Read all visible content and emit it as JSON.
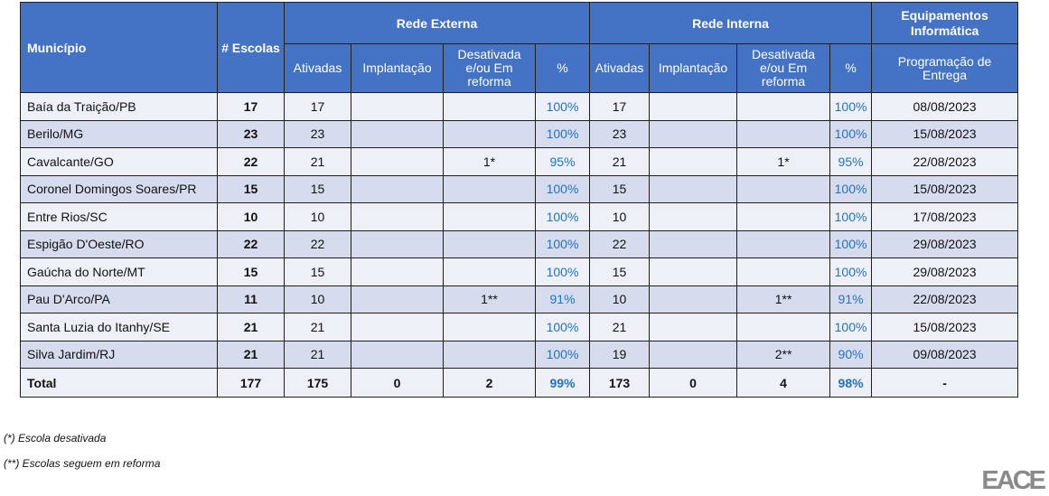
{
  "header": {
    "municipio": "Município",
    "escolas": "# Escolas",
    "rede_externa": "Rede Externa",
    "rede_interna": "Rede Interna",
    "equipamentos": "Equipamentos Informática",
    "ativadas": "Ativadas",
    "implantacao": "Implantação",
    "desativada": "Desativada e/ou Em reforma",
    "pct": "%",
    "programacao": "Programação de Entrega"
  },
  "rows": [
    {
      "mun": "Baía da Traição/PB",
      "esc": "17",
      "ea": "17",
      "ei": "",
      "ed": "",
      "ep": "100%",
      "ia": "17",
      "ii": "",
      "id": "",
      "ip": "100%",
      "prog": "08/08/2023"
    },
    {
      "mun": "Berilo/MG",
      "esc": "23",
      "ea": "23",
      "ei": "",
      "ed": "",
      "ep": "100%",
      "ia": "23",
      "ii": "",
      "id": "",
      "ip": "100%",
      "prog": "15/08/2023"
    },
    {
      "mun": "Cavalcante/GO",
      "esc": "22",
      "ea": "21",
      "ei": "",
      "ed": "1*",
      "ep": "95%",
      "ia": "21",
      "ii": "",
      "id": "1*",
      "ip": "95%",
      "prog": "22/08/2023"
    },
    {
      "mun": "Coronel Domingos Soares/PR",
      "esc": "15",
      "ea": "15",
      "ei": "",
      "ed": "",
      "ep": "100%",
      "ia": "15",
      "ii": "",
      "id": "",
      "ip": "100%",
      "prog": "15/08/2023"
    },
    {
      "mun": "Entre Rios/SC",
      "esc": "10",
      "ea": "10",
      "ei": "",
      "ed": "",
      "ep": "100%",
      "ia": "10",
      "ii": "",
      "id": "",
      "ip": "100%",
      "prog": "17/08/2023"
    },
    {
      "mun": "Espigão D'Oeste/RO",
      "esc": "22",
      "ea": "22",
      "ei": "",
      "ed": "",
      "ep": "100%",
      "ia": "22",
      "ii": "",
      "id": "",
      "ip": "100%",
      "prog": "29/08/2023"
    },
    {
      "mun": "Gaúcha do Norte/MT",
      "esc": "15",
      "ea": "15",
      "ei": "",
      "ed": "",
      "ep": "100%",
      "ia": "15",
      "ii": "",
      "id": "",
      "ip": "100%",
      "prog": "29/08/2023"
    },
    {
      "mun": "Pau D'Arco/PA",
      "esc": "11",
      "ea": "10",
      "ei": "",
      "ed": "1**",
      "ep": "91%",
      "ia": "10",
      "ii": "",
      "id": "1**",
      "ip": "91%",
      "prog": "22/08/2023"
    },
    {
      "mun": "Santa Luzia do Itanhy/SE",
      "esc": "21",
      "ea": "21",
      "ei": "",
      "ed": "",
      "ep": "100%",
      "ia": "21",
      "ii": "",
      "id": "",
      "ip": "100%",
      "prog": "15/08/2023"
    },
    {
      "mun": "Silva Jardim/RJ",
      "esc": "21",
      "ea": "21",
      "ei": "",
      "ed": "",
      "ep": "100%",
      "ia": "19",
      "ii": "",
      "id": "2**",
      "ip": "90%",
      "prog": "09/08/2023"
    }
  ],
  "total": {
    "mun": "Total",
    "esc": "177",
    "ea": "175",
    "ei": "0",
    "ed": "2",
    "ep": "99%",
    "ia": "173",
    "ii": "0",
    "id": "4",
    "ip": "98%",
    "prog": "-"
  },
  "notes": [
    "(*) Escola desativada",
    "(**) Escolas seguem em reforma"
  ],
  "logo": "EACE",
  "colors": {
    "header_bg": "#4472c4",
    "pct_text": "#1f73c6",
    "row_light": "#eef0f8",
    "row_dark": "#d6dcee"
  }
}
